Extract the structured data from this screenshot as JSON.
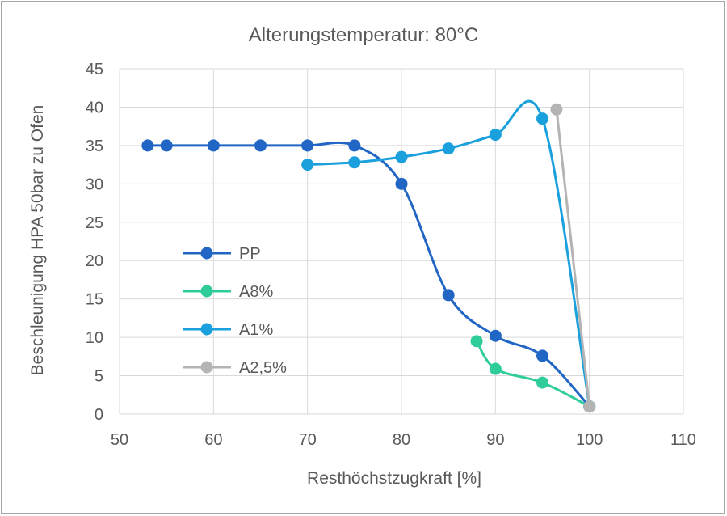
{
  "chart_data": {
    "type": "line",
    "title": "Alterungstemperatur: 80°C",
    "xlabel": "Resthöchstzugkraft [%]",
    "ylabel": "Beschleunigung HPA 50bar zu Ofen",
    "xlim": [
      50,
      110
    ],
    "ylim": [
      0,
      45
    ],
    "xticks": [
      50,
      60,
      70,
      80,
      90,
      100,
      110
    ],
    "yticks": [
      0,
      5,
      10,
      15,
      20,
      25,
      30,
      35,
      40,
      45
    ],
    "grid": true,
    "smooth": true,
    "legend_position": "left-center",
    "series": [
      {
        "name": "PP",
        "color": "#2166c4",
        "points": [
          [
            53,
            35
          ],
          [
            55,
            35
          ],
          [
            60,
            35
          ],
          [
            65,
            35
          ],
          [
            70,
            35
          ],
          [
            75,
            35
          ],
          [
            80,
            30
          ],
          [
            85,
            15.5
          ],
          [
            90,
            10.2
          ],
          [
            95,
            7.6
          ],
          [
            100,
            1
          ]
        ]
      },
      {
        "name": "A8%",
        "color": "#2ecc9a",
        "points": [
          [
            88,
            9.5
          ],
          [
            90,
            5.9
          ],
          [
            95,
            4.1
          ],
          [
            100,
            1
          ]
        ]
      },
      {
        "name": "A1%",
        "color": "#1aa0dc",
        "points": [
          [
            70,
            32.5
          ],
          [
            75,
            32.8
          ],
          [
            80,
            33.5
          ],
          [
            85,
            34.6
          ],
          [
            90,
            36.4
          ],
          [
            95,
            38.5
          ],
          [
            100,
            1
          ]
        ]
      },
      {
        "name": "A2,5%",
        "color": "#b4b4b4",
        "points": [
          [
            96.5,
            39.7
          ],
          [
            100,
            1
          ]
        ]
      }
    ]
  }
}
